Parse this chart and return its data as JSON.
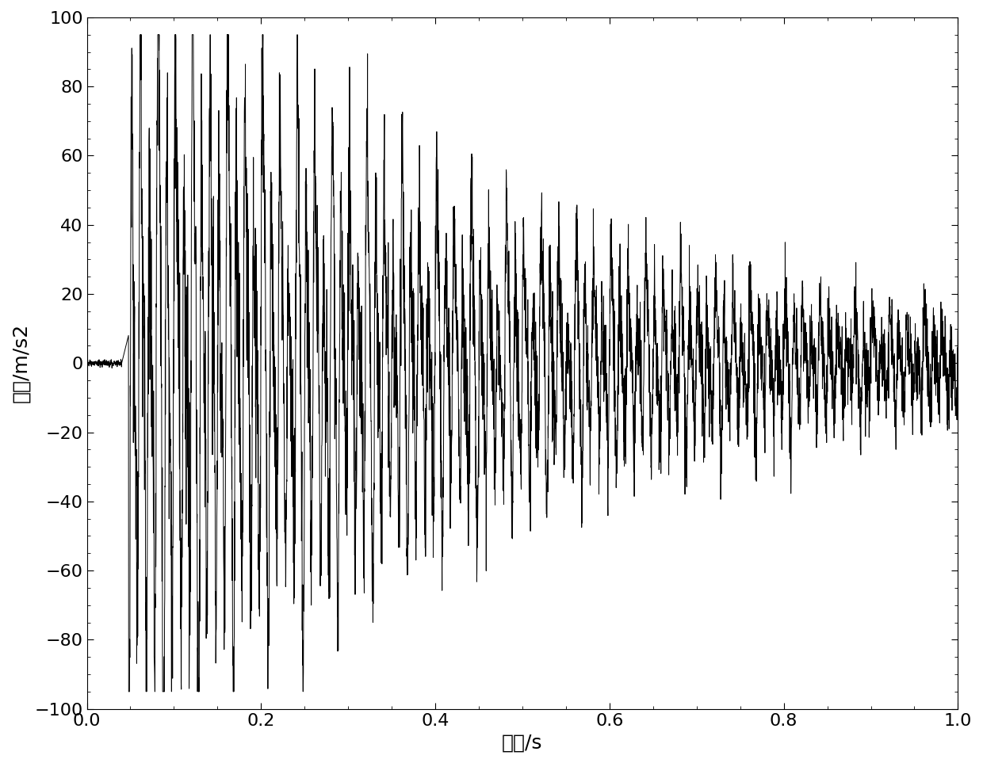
{
  "xlabel": "时间/s",
  "ylabel": "振动/m/s2",
  "xlim": [
    0,
    1
  ],
  "ylim": [
    -100,
    100
  ],
  "xticks": [
    0,
    0.2,
    0.4,
    0.6,
    0.8,
    1
  ],
  "yticks": [
    -100,
    -80,
    -60,
    -40,
    -20,
    0,
    20,
    40,
    60,
    80,
    100
  ],
  "line_color": "#000000",
  "line_width": 0.7,
  "background_color": "#ffffff",
  "figsize": [
    12.4,
    9.63
  ],
  "dpi": 100,
  "xlabel_fontsize": 18,
  "ylabel_fontsize": 18,
  "tick_fontsize": 16
}
